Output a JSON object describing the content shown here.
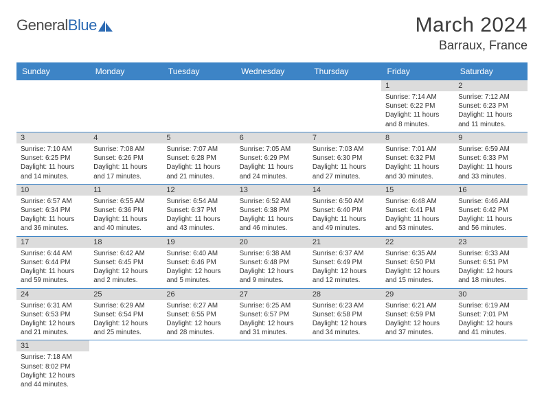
{
  "logo": {
    "part1": "General",
    "part2": "Blue"
  },
  "title": "March 2024",
  "location": "Barraux, France",
  "colors": {
    "header_bg": "#3d84c6",
    "header_fg": "#ffffff",
    "daynum_bg": "#dcdcdc",
    "rule": "#3d84c6",
    "logo_gray": "#4a4a4a",
    "logo_blue": "#2d6bb4"
  },
  "daysOfWeek": [
    "Sunday",
    "Monday",
    "Tuesday",
    "Wednesday",
    "Thursday",
    "Friday",
    "Saturday"
  ],
  "weeks": [
    [
      null,
      null,
      null,
      null,
      null,
      {
        "n": "1",
        "sunrise": "7:14 AM",
        "sunset": "6:22 PM",
        "daylight": "11 hours and 8 minutes."
      },
      {
        "n": "2",
        "sunrise": "7:12 AM",
        "sunset": "6:23 PM",
        "daylight": "11 hours and 11 minutes."
      }
    ],
    [
      {
        "n": "3",
        "sunrise": "7:10 AM",
        "sunset": "6:25 PM",
        "daylight": "11 hours and 14 minutes."
      },
      {
        "n": "4",
        "sunrise": "7:08 AM",
        "sunset": "6:26 PM",
        "daylight": "11 hours and 17 minutes."
      },
      {
        "n": "5",
        "sunrise": "7:07 AM",
        "sunset": "6:28 PM",
        "daylight": "11 hours and 21 minutes."
      },
      {
        "n": "6",
        "sunrise": "7:05 AM",
        "sunset": "6:29 PM",
        "daylight": "11 hours and 24 minutes."
      },
      {
        "n": "7",
        "sunrise": "7:03 AM",
        "sunset": "6:30 PM",
        "daylight": "11 hours and 27 minutes."
      },
      {
        "n": "8",
        "sunrise": "7:01 AM",
        "sunset": "6:32 PM",
        "daylight": "11 hours and 30 minutes."
      },
      {
        "n": "9",
        "sunrise": "6:59 AM",
        "sunset": "6:33 PM",
        "daylight": "11 hours and 33 minutes."
      }
    ],
    [
      {
        "n": "10",
        "sunrise": "6:57 AM",
        "sunset": "6:34 PM",
        "daylight": "11 hours and 36 minutes."
      },
      {
        "n": "11",
        "sunrise": "6:55 AM",
        "sunset": "6:36 PM",
        "daylight": "11 hours and 40 minutes."
      },
      {
        "n": "12",
        "sunrise": "6:54 AM",
        "sunset": "6:37 PM",
        "daylight": "11 hours and 43 minutes."
      },
      {
        "n": "13",
        "sunrise": "6:52 AM",
        "sunset": "6:38 PM",
        "daylight": "11 hours and 46 minutes."
      },
      {
        "n": "14",
        "sunrise": "6:50 AM",
        "sunset": "6:40 PM",
        "daylight": "11 hours and 49 minutes."
      },
      {
        "n": "15",
        "sunrise": "6:48 AM",
        "sunset": "6:41 PM",
        "daylight": "11 hours and 53 minutes."
      },
      {
        "n": "16",
        "sunrise": "6:46 AM",
        "sunset": "6:42 PM",
        "daylight": "11 hours and 56 minutes."
      }
    ],
    [
      {
        "n": "17",
        "sunrise": "6:44 AM",
        "sunset": "6:44 PM",
        "daylight": "11 hours and 59 minutes."
      },
      {
        "n": "18",
        "sunrise": "6:42 AM",
        "sunset": "6:45 PM",
        "daylight": "12 hours and 2 minutes."
      },
      {
        "n": "19",
        "sunrise": "6:40 AM",
        "sunset": "6:46 PM",
        "daylight": "12 hours and 5 minutes."
      },
      {
        "n": "20",
        "sunrise": "6:38 AM",
        "sunset": "6:48 PM",
        "daylight": "12 hours and 9 minutes."
      },
      {
        "n": "21",
        "sunrise": "6:37 AM",
        "sunset": "6:49 PM",
        "daylight": "12 hours and 12 minutes."
      },
      {
        "n": "22",
        "sunrise": "6:35 AM",
        "sunset": "6:50 PM",
        "daylight": "12 hours and 15 minutes."
      },
      {
        "n": "23",
        "sunrise": "6:33 AM",
        "sunset": "6:51 PM",
        "daylight": "12 hours and 18 minutes."
      }
    ],
    [
      {
        "n": "24",
        "sunrise": "6:31 AM",
        "sunset": "6:53 PM",
        "daylight": "12 hours and 21 minutes."
      },
      {
        "n": "25",
        "sunrise": "6:29 AM",
        "sunset": "6:54 PM",
        "daylight": "12 hours and 25 minutes."
      },
      {
        "n": "26",
        "sunrise": "6:27 AM",
        "sunset": "6:55 PM",
        "daylight": "12 hours and 28 minutes."
      },
      {
        "n": "27",
        "sunrise": "6:25 AM",
        "sunset": "6:57 PM",
        "daylight": "12 hours and 31 minutes."
      },
      {
        "n": "28",
        "sunrise": "6:23 AM",
        "sunset": "6:58 PM",
        "daylight": "12 hours and 34 minutes."
      },
      {
        "n": "29",
        "sunrise": "6:21 AM",
        "sunset": "6:59 PM",
        "daylight": "12 hours and 37 minutes."
      },
      {
        "n": "30",
        "sunrise": "6:19 AM",
        "sunset": "7:01 PM",
        "daylight": "12 hours and 41 minutes."
      }
    ],
    [
      {
        "n": "31",
        "sunrise": "7:18 AM",
        "sunset": "8:02 PM",
        "daylight": "12 hours and 44 minutes."
      },
      null,
      null,
      null,
      null,
      null,
      null
    ]
  ],
  "labels": {
    "sunrise": "Sunrise:",
    "sunset": "Sunset:",
    "daylight": "Daylight:"
  }
}
